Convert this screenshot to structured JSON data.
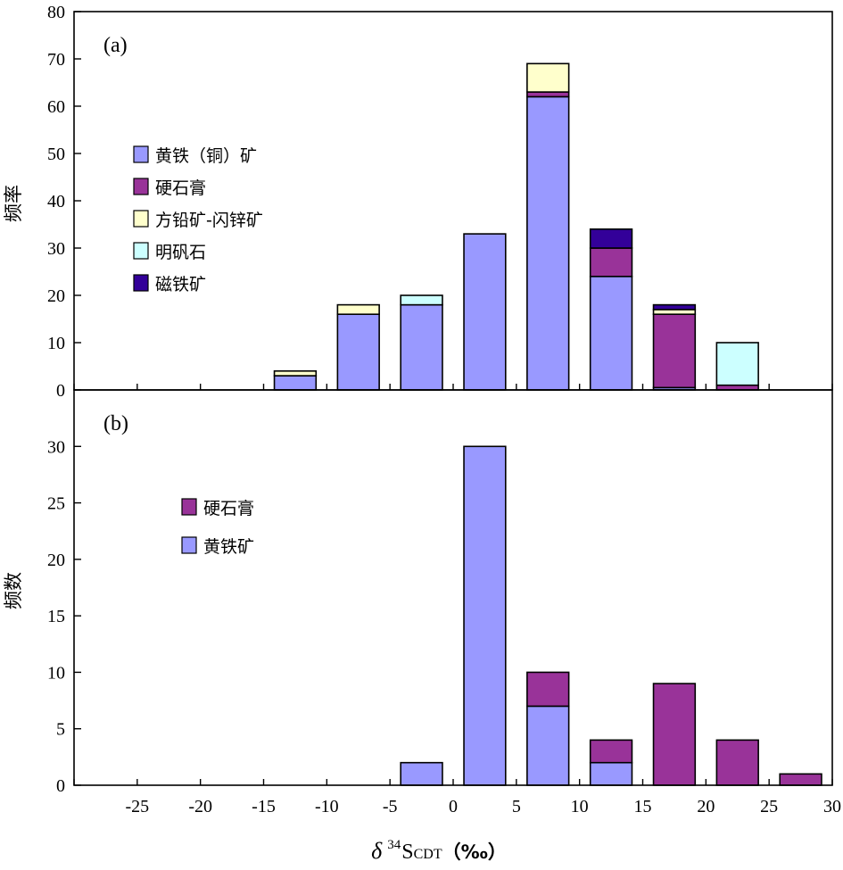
{
  "colors": {
    "pyrite": "#9999ff",
    "anhydrite": "#993399",
    "galena": "#ffffcc",
    "alunite": "#ccffff",
    "magnetite": "#330099"
  },
  "x_axis": {
    "label_delta": "δ",
    "label_sup": "34",
    "label_s": "S",
    "label_sub": "CDT",
    "label_unit": "（‰）",
    "xlim": [
      -30,
      30
    ],
    "ticks": [
      -25,
      -20,
      -15,
      -10,
      -5,
      0,
      5,
      10,
      15,
      20,
      25,
      30
    ]
  },
  "chart_data": [
    {
      "type": "bar",
      "stacked": true,
      "panel_label": "(a)",
      "ylabel": "频率",
      "ylim": [
        0,
        80
      ],
      "yticks": [
        0,
        10,
        20,
        30,
        40,
        50,
        60,
        70,
        80
      ],
      "bin_width": 5,
      "categories": [
        -12.5,
        -7.5,
        -2.5,
        2.5,
        7.5,
        12.5,
        17.5,
        22.5
      ],
      "legend_position": "middle-left",
      "series": [
        {
          "name": "黄铁（铜）矿",
          "color_key": "pyrite",
          "values": [
            3,
            16,
            18,
            33,
            62,
            24,
            0.5,
            0
          ]
        },
        {
          "name": "硬石膏",
          "color_key": "anhydrite",
          "values": [
            0,
            0,
            0,
            0,
            1,
            6,
            15.5,
            1
          ]
        },
        {
          "name": "方铅矿-闪锌矿",
          "color_key": "galena",
          "values": [
            1,
            2,
            0,
            0,
            6,
            0,
            1,
            0
          ]
        },
        {
          "name": "明矾石",
          "color_key": "alunite",
          "values": [
            0,
            0,
            2,
            0,
            0,
            0,
            0,
            9
          ]
        },
        {
          "name": "磁铁矿",
          "color_key": "magnetite",
          "values": [
            0,
            0,
            0,
            0,
            0,
            4,
            1,
            0
          ]
        }
      ]
    },
    {
      "type": "bar",
      "stacked": true,
      "panel_label": "(b)",
      "ylabel": "频数",
      "ylim": [
        0,
        35
      ],
      "yticks": [
        0,
        5,
        10,
        15,
        20,
        25,
        30
      ],
      "bin_width": 5,
      "categories": [
        -2.5,
        2.5,
        7.5,
        12.5,
        17.5,
        22.5,
        27.5
      ],
      "legend_position": "upper-left",
      "series": [
        {
          "name": "黄铁矿",
          "color_key": "pyrite",
          "values": [
            2,
            30,
            7,
            2,
            0,
            0,
            0
          ]
        },
        {
          "name": "硬石膏",
          "color_key": "anhydrite",
          "values": [
            0,
            0,
            3,
            2,
            9,
            4,
            1
          ]
        }
      ],
      "legend_order": [
        1,
        0
      ]
    }
  ]
}
